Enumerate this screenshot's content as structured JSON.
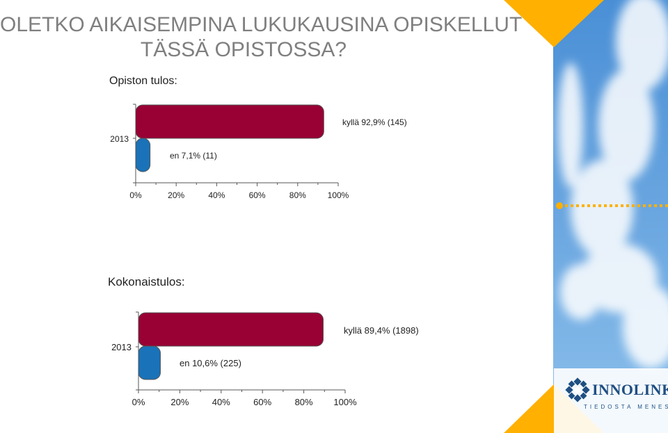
{
  "title": {
    "line1": "OLETKO AIKAISEMPINA LUKUKAUSINA OPISKELLUT",
    "line2": "TÄSSÄ OPISTOSSA?"
  },
  "colors": {
    "kylla": "#990033",
    "en": "#1a72b8",
    "title": "#7f7f7f",
    "accent_orange": "#ffb000",
    "brand_blue": "#1f4f82"
  },
  "brand": {
    "logo_icon": "innolink-emblem-icon",
    "name": "INNOLINK",
    "tagline": "TIEDOSTA MENESTYS"
  },
  "chart_data": [
    {
      "type": "bar",
      "orientation": "horizontal",
      "title": "Opiston tulos:",
      "categories": [
        "2013"
      ],
      "series": [
        {
          "name": "kyllä",
          "values": [
            92.9
          ],
          "count": 145,
          "label": "kyllä 92,9% (145)"
        },
        {
          "name": "en",
          "values": [
            7.1
          ],
          "count": 11,
          "label": "en 7,1% (11)"
        }
      ],
      "xlim": [
        0,
        100
      ],
      "xticks": [
        "0%",
        "20%",
        "40%",
        "60%",
        "80%",
        "100%"
      ]
    },
    {
      "type": "bar",
      "orientation": "horizontal",
      "title": "Kokonaistulos:",
      "categories": [
        "2013"
      ],
      "series": [
        {
          "name": "kyllä",
          "values": [
            89.4
          ],
          "count": 1898,
          "label": "kyllä 89,4% (1898)"
        },
        {
          "name": "en",
          "values": [
            10.6
          ],
          "count": 225,
          "label": "en 10,6% (225)"
        }
      ],
      "xlim": [
        0,
        100
      ],
      "xticks": [
        "0%",
        "20%",
        "40%",
        "60%",
        "80%",
        "100%"
      ]
    }
  ]
}
